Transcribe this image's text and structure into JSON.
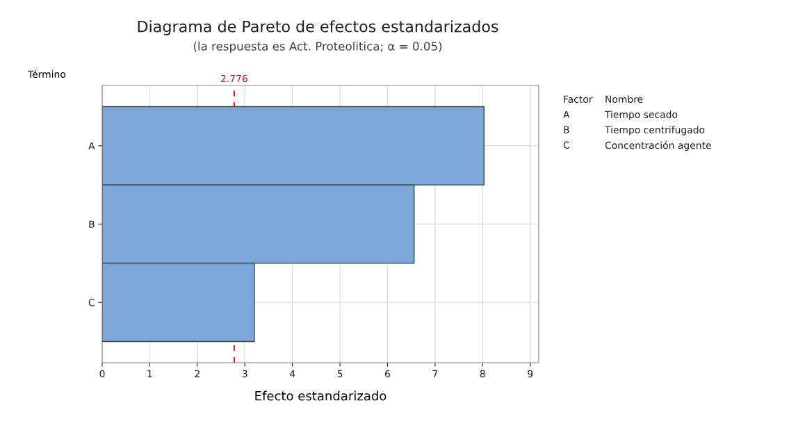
{
  "chart_data": {
    "type": "bar",
    "orientation": "horizontal",
    "title": "Diagrama de Pareto de efectos estandarizados",
    "subtitle": "(la respuesta es Act. Proteolitica; α = 0.05)",
    "xlabel": "Efecto estandarizado",
    "ylabel": "Término",
    "categories": [
      "A",
      "B",
      "C"
    ],
    "values": [
      8.03,
      6.56,
      3.2
    ],
    "color": "#7ba7d9",
    "xlim": [
      0,
      9.18
    ],
    "xticks": [
      0,
      1,
      2,
      3,
      4,
      5,
      6,
      7,
      8,
      9
    ],
    "grid": true,
    "ref_lines": [
      {
        "axis": "x",
        "value": 2.776,
        "label": "2.776",
        "color": "#e02020",
        "line_style": "dashed"
      }
    ],
    "annotations": [
      "Factor",
      "Nombre",
      "A",
      "Tiempo secado",
      "B",
      "Tiempo centrifugado",
      "C",
      "Concentración agente"
    ]
  }
}
